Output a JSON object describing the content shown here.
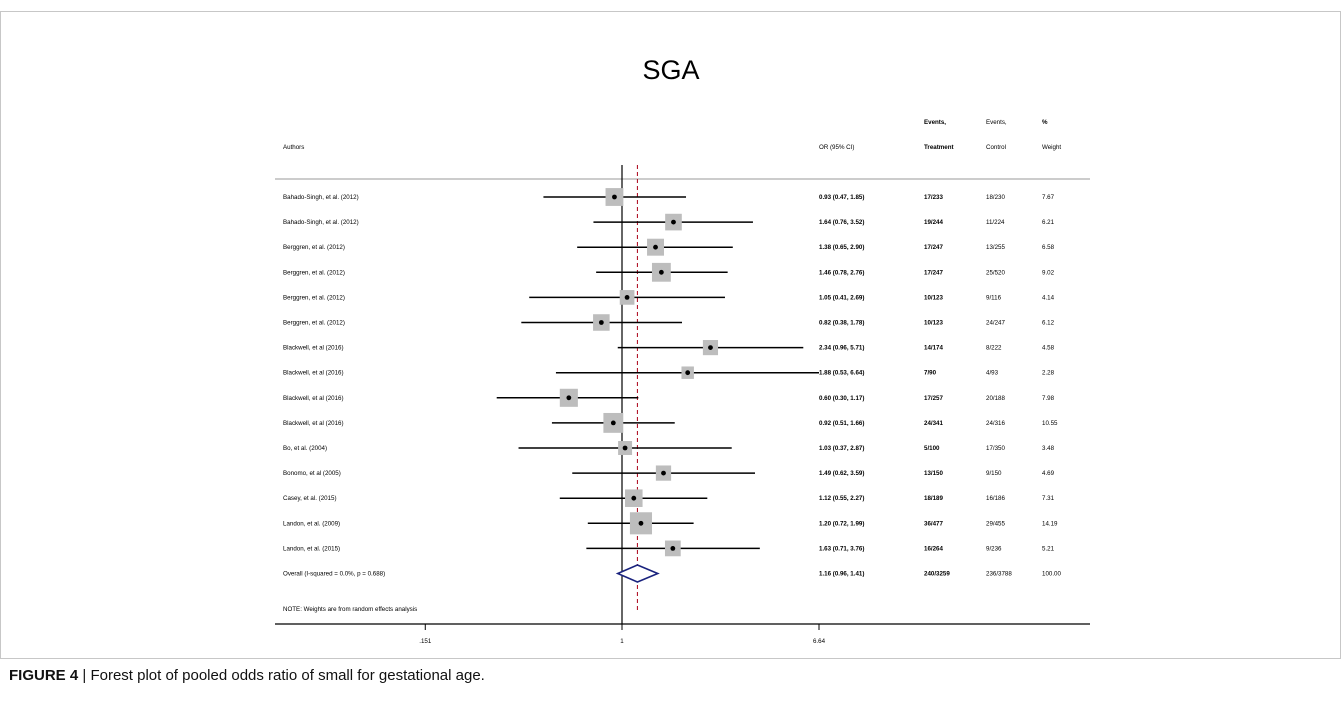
{
  "figure": {
    "caption_label": "FIGURE 4",
    "caption_separator": "|",
    "caption_text": "Forest plot of pooled odds ratio of small for gestational age."
  },
  "chart_data": {
    "type": "forest",
    "title": "SGA",
    "x_scale": "log",
    "x_ticks": [
      0.151,
      1,
      6.64
    ],
    "x_tick_labels": [
      ".151",
      "1",
      "6.64"
    ],
    "null_line": 1,
    "overall_line": 1.16,
    "columns": {
      "authors": "Authors",
      "or": "OR (95% CI)",
      "events_treatment_line1": "Events,",
      "events_treatment_line2": "Treatment",
      "events_control_line1": "Events,",
      "events_control_line2": "Control",
      "weight_line1": "%",
      "weight_line2": "Weight"
    },
    "studies": [
      {
        "author": "Bahado-Singh, et al. (2012)",
        "or": 0.93,
        "lo": 0.47,
        "hi": 1.85,
        "or_text": "0.93 (0.47, 1.85)",
        "treatment": "17/233",
        "control": "18/230",
        "weight": "7.67"
      },
      {
        "author": "Bahado-Singh, et al. (2012)",
        "or": 1.64,
        "lo": 0.76,
        "hi": 3.52,
        "or_text": "1.64 (0.76, 3.52)",
        "treatment": "19/244",
        "control": "11/224",
        "weight": "6.21"
      },
      {
        "author": "Berggren, et al. (2012)",
        "or": 1.38,
        "lo": 0.65,
        "hi": 2.9,
        "or_text": "1.38 (0.65, 2.90)",
        "treatment": "17/247",
        "control": "13/255",
        "weight": "6.58"
      },
      {
        "author": "Berggren, et al. (2012)",
        "or": 1.46,
        "lo": 0.78,
        "hi": 2.76,
        "or_text": "1.46 (0.78, 2.76)",
        "treatment": "17/247",
        "control": "25/520",
        "weight": "9.02"
      },
      {
        "author": "Berggren, et al. (2012)",
        "or": 1.05,
        "lo": 0.41,
        "hi": 2.69,
        "or_text": "1.05 (0.41, 2.69)",
        "treatment": "10/123",
        "control": "9/116",
        "weight": "4.14"
      },
      {
        "author": "Berggren, et al. (2012)",
        "or": 0.82,
        "lo": 0.38,
        "hi": 1.78,
        "or_text": "0.82 (0.38, 1.78)",
        "treatment": "10/123",
        "control": "24/247",
        "weight": "6.12"
      },
      {
        "author": "Blackwell, et al (2016)",
        "or": 2.34,
        "lo": 0.96,
        "hi": 5.71,
        "or_text": "2.34 (0.96, 5.71)",
        "treatment": "14/174",
        "control": "8/222",
        "weight": "4.58"
      },
      {
        "author": "Blackwell, et al (2016)",
        "or": 1.88,
        "lo": 0.53,
        "hi": 6.64,
        "or_text": "1.88 (0.53, 6.64)",
        "treatment": "7/90",
        "control": "4/93",
        "weight": "2.28"
      },
      {
        "author": "Blackwell, et al (2016)",
        "or": 0.6,
        "lo": 0.3,
        "hi": 1.17,
        "or_text": "0.60 (0.30, 1.17)",
        "treatment": "17/257",
        "control": "20/188",
        "weight": "7.98"
      },
      {
        "author": "Blackwell, et al (2016)",
        "or": 0.92,
        "lo": 0.51,
        "hi": 1.66,
        "or_text": "0.92 (0.51, 1.66)",
        "treatment": "24/341",
        "control": "24/316",
        "weight": "10.55"
      },
      {
        "author": "Bo, et al. (2004)",
        "or": 1.03,
        "lo": 0.37,
        "hi": 2.87,
        "or_text": "1.03 (0.37, 2.87)",
        "treatment": "5/100",
        "control": "17/350",
        "weight": "3.48"
      },
      {
        "author": "Bonomo, et al (2005)",
        "or": 1.49,
        "lo": 0.62,
        "hi": 3.59,
        "or_text": "1.49 (0.62, 3.59)",
        "treatment": "13/150",
        "control": "9/150",
        "weight": "4.69"
      },
      {
        "author": "Casey, et al. (2015)",
        "or": 1.12,
        "lo": 0.55,
        "hi": 2.27,
        "or_text": "1.12 (0.55, 2.27)",
        "treatment": "18/189",
        "control": "16/186",
        "weight": "7.31"
      },
      {
        "author": "Landon, et al. (2009)",
        "or": 1.2,
        "lo": 0.72,
        "hi": 1.99,
        "or_text": "1.20 (0.72, 1.99)",
        "treatment": "36/477",
        "control": "29/455",
        "weight": "14.19"
      },
      {
        "author": "Landon, et al. (2015)",
        "or": 1.63,
        "lo": 0.71,
        "hi": 3.76,
        "or_text": "1.63 (0.71, 3.76)",
        "treatment": "16/264",
        "control": "9/236",
        "weight": "5.21"
      }
    ],
    "overall": {
      "author": "Overall  (I-squared = 0.0%, p = 0.688)",
      "or": 1.16,
      "lo": 0.96,
      "hi": 1.41,
      "or_text": "1.16 (0.96, 1.41)",
      "treatment": "240/3259",
      "control": "236/3788",
      "weight": "100.00"
    },
    "note": "NOTE: Weights are from random effects analysis",
    "colors": {
      "ci_line": "#000000",
      "weight_box": "#bdbdbd",
      "point": "#000000",
      "overall_line": "#b2182b",
      "diamond": "#1a237e",
      "frame": "#c7c7c7"
    }
  }
}
